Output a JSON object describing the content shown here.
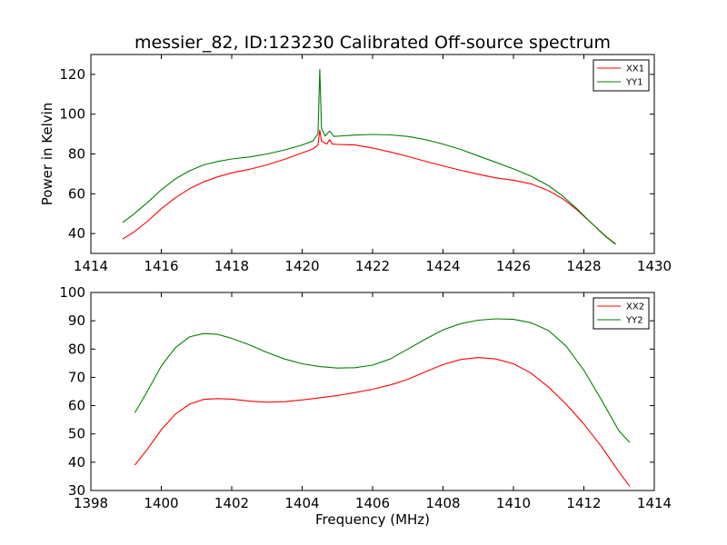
{
  "title": "messier_82, ID:123230 Calibrated Off-source spectrum",
  "colors": {
    "xx": "#ff0000",
    "yy": "#008000",
    "axes": "#000000",
    "background": "#ffffff"
  },
  "chart_data": [
    {
      "type": "line",
      "title": "messier_82, ID:123230 Calibrated Off-source spectrum",
      "xlabel": "",
      "ylabel": "Power in Kelvin",
      "xlim": [
        1414,
        1430
      ],
      "ylim": [
        30,
        130
      ],
      "xticks": [
        "1414",
        "1416",
        "1418",
        "1420",
        "1422",
        "1424",
        "1426",
        "1428",
        "1430"
      ],
      "yticks": [
        "40",
        "60",
        "80",
        "100",
        "120"
      ],
      "legend_position": "top-right",
      "grid": false,
      "series": [
        {
          "name": "XX1",
          "color": "#ff0000",
          "points": [
            [
              1414.9,
              37.2
            ],
            [
              1415.2,
              40.5
            ],
            [
              1415.6,
              46.0
            ],
            [
              1416.0,
              52.5
            ],
            [
              1416.4,
              58.0
            ],
            [
              1416.8,
              62.5
            ],
            [
              1417.2,
              66.0
            ],
            [
              1417.6,
              68.5
            ],
            [
              1418.0,
              70.5
            ],
            [
              1418.5,
              72.3
            ],
            [
              1419.0,
              74.5
            ],
            [
              1419.5,
              77.3
            ],
            [
              1420.0,
              80.5
            ],
            [
              1420.3,
              82.5
            ],
            [
              1420.45,
              84.5
            ],
            [
              1420.5,
              92.0
            ],
            [
              1420.55,
              86.5
            ],
            [
              1420.7,
              85.0
            ],
            [
              1420.78,
              87.2
            ],
            [
              1420.85,
              85.0
            ],
            [
              1421.0,
              84.8
            ],
            [
              1421.5,
              84.5
            ],
            [
              1422.0,
              83.0
            ],
            [
              1422.5,
              81.0
            ],
            [
              1423.0,
              78.8
            ],
            [
              1423.5,
              76.3
            ],
            [
              1424.0,
              74.0
            ],
            [
              1424.5,
              71.8
            ],
            [
              1425.0,
              69.8
            ],
            [
              1425.5,
              68.0
            ],
            [
              1426.0,
              66.8
            ],
            [
              1426.5,
              65.0
            ],
            [
              1427.0,
              61.5
            ],
            [
              1427.4,
              57.5
            ],
            [
              1427.8,
              52.0
            ],
            [
              1428.2,
              45.5
            ],
            [
              1428.6,
              39.0
            ],
            [
              1428.9,
              34.8
            ]
          ]
        },
        {
          "name": "YY1",
          "color": "#008000",
          "points": [
            [
              1414.9,
              45.5
            ],
            [
              1415.2,
              49.5
            ],
            [
              1415.6,
              55.5
            ],
            [
              1416.0,
              62.0
            ],
            [
              1416.4,
              67.5
            ],
            [
              1416.8,
              71.5
            ],
            [
              1417.2,
              74.5
            ],
            [
              1417.6,
              76.2
            ],
            [
              1418.0,
              77.5
            ],
            [
              1418.5,
              78.5
            ],
            [
              1419.0,
              80.0
            ],
            [
              1419.5,
              82.0
            ],
            [
              1420.0,
              84.5
            ],
            [
              1420.3,
              86.5
            ],
            [
              1420.45,
              90.0
            ],
            [
              1420.5,
              122.5
            ],
            [
              1420.55,
              93.0
            ],
            [
              1420.65,
              89.0
            ],
            [
              1420.78,
              91.5
            ],
            [
              1420.9,
              88.8
            ],
            [
              1421.5,
              89.5
            ],
            [
              1422.0,
              89.8
            ],
            [
              1422.5,
              89.6
            ],
            [
              1423.0,
              88.8
            ],
            [
              1423.5,
              87.2
            ],
            [
              1424.0,
              85.0
            ],
            [
              1424.5,
              82.3
            ],
            [
              1425.0,
              79.0
            ],
            [
              1425.5,
              75.8
            ],
            [
              1426.0,
              72.5
            ],
            [
              1426.5,
              68.8
            ],
            [
              1427.0,
              64.0
            ],
            [
              1427.4,
              58.8
            ],
            [
              1427.8,
              52.5
            ],
            [
              1428.2,
              45.5
            ],
            [
              1428.6,
              38.8
            ],
            [
              1428.9,
              34.5
            ]
          ]
        }
      ]
    },
    {
      "type": "line",
      "title": "",
      "xlabel": "Frequency (MHz)",
      "ylabel": "",
      "xlim": [
        1398,
        1414
      ],
      "ylim": [
        30,
        100
      ],
      "xticks": [
        "1398",
        "1400",
        "1402",
        "1404",
        "1406",
        "1408",
        "1410",
        "1412",
        "1414"
      ],
      "yticks": [
        "30",
        "40",
        "50",
        "60",
        "70",
        "80",
        "90",
        "100"
      ],
      "legend_position": "top-right",
      "grid": false,
      "series": [
        {
          "name": "XX2",
          "color": "#ff0000",
          "points": [
            [
              1399.25,
              39.0
            ],
            [
              1399.6,
              44.5
            ],
            [
              1400.0,
              51.5
            ],
            [
              1400.4,
              57.0
            ],
            [
              1400.8,
              60.5
            ],
            [
              1401.2,
              62.2
            ],
            [
              1401.6,
              62.5
            ],
            [
              1402.0,
              62.3
            ],
            [
              1402.5,
              61.6
            ],
            [
              1403.0,
              61.2
            ],
            [
              1403.5,
              61.4
            ],
            [
              1404.0,
              62.0
            ],
            [
              1404.5,
              62.8
            ],
            [
              1405.0,
              63.6
            ],
            [
              1405.5,
              64.6
            ],
            [
              1406.0,
              65.8
            ],
            [
              1406.5,
              67.3
            ],
            [
              1407.0,
              69.3
            ],
            [
              1407.5,
              72.0
            ],
            [
              1408.0,
              74.5
            ],
            [
              1408.5,
              76.3
            ],
            [
              1409.0,
              77.0
            ],
            [
              1409.5,
              76.5
            ],
            [
              1410.0,
              74.8
            ],
            [
              1410.5,
              71.5
            ],
            [
              1411.0,
              66.5
            ],
            [
              1411.5,
              60.5
            ],
            [
              1412.0,
              53.5
            ],
            [
              1412.5,
              45.5
            ],
            [
              1413.0,
              36.5
            ],
            [
              1413.3,
              31.5
            ]
          ]
        },
        {
          "name": "YY2",
          "color": "#008000",
          "points": [
            [
              1399.25,
              57.5
            ],
            [
              1399.6,
              65.0
            ],
            [
              1400.0,
              74.0
            ],
            [
              1400.4,
              80.5
            ],
            [
              1400.8,
              84.3
            ],
            [
              1401.2,
              85.5
            ],
            [
              1401.6,
              85.2
            ],
            [
              1402.0,
              83.8
            ],
            [
              1402.5,
              81.5
            ],
            [
              1403.0,
              78.8
            ],
            [
              1403.5,
              76.5
            ],
            [
              1404.0,
              74.8
            ],
            [
              1404.5,
              73.8
            ],
            [
              1405.0,
              73.3
            ],
            [
              1405.5,
              73.4
            ],
            [
              1406.0,
              74.3
            ],
            [
              1406.5,
              76.5
            ],
            [
              1407.0,
              80.0
            ],
            [
              1407.5,
              83.5
            ],
            [
              1408.0,
              86.8
            ],
            [
              1408.5,
              89.0
            ],
            [
              1409.0,
              90.2
            ],
            [
              1409.5,
              90.7
            ],
            [
              1410.0,
              90.5
            ],
            [
              1410.5,
              89.3
            ],
            [
              1411.0,
              86.5
            ],
            [
              1411.5,
              81.0
            ],
            [
              1412.0,
              72.5
            ],
            [
              1412.5,
              62.0
            ],
            [
              1413.0,
              51.0
            ],
            [
              1413.3,
              47.0
            ]
          ]
        }
      ]
    }
  ]
}
